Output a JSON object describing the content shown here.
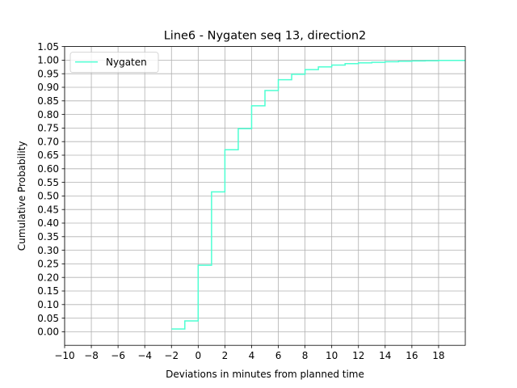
{
  "chart_data": {
    "type": "line",
    "step": "post",
    "title": "Line6 - Nygaten seq 13, direction2",
    "xlabel": "Deviations in minutes from planned time",
    "ylabel": "Cumulative Probability",
    "xlim": [
      -10,
      20
    ],
    "ylim": [
      -0.05,
      1.05
    ],
    "x_ticks": [
      -10,
      -8,
      -6,
      -4,
      -2,
      0,
      2,
      4,
      6,
      8,
      10,
      12,
      14,
      16,
      18
    ],
    "x_tick_labels": [
      "−10",
      "−8",
      "−6",
      "−4",
      "−2",
      "0",
      "2",
      "4",
      "6",
      "8",
      "10",
      "12",
      "14",
      "16",
      "18"
    ],
    "y_ticks": [
      0.0,
      0.05,
      0.1,
      0.15,
      0.2,
      0.25,
      0.3,
      0.35,
      0.4,
      0.45,
      0.5,
      0.55,
      0.6,
      0.65,
      0.7,
      0.75,
      0.8,
      0.85,
      0.9,
      0.95,
      1.0,
      1.05
    ],
    "y_tick_labels": [
      "0.00",
      "0.05",
      "0.10",
      "0.15",
      "0.20",
      "0.25",
      "0.30",
      "0.35",
      "0.40",
      "0.45",
      "0.50",
      "0.55",
      "0.60",
      "0.65",
      "0.70",
      "0.75",
      "0.80",
      "0.85",
      "0.90",
      "0.95",
      "1.00",
      "1.05"
    ],
    "grid": true,
    "legend_position": "top-left",
    "series": [
      {
        "name": "Nygaten",
        "color": "#4dffd2",
        "x": [
          -2,
          -1,
          0,
          1,
          2,
          3,
          4,
          5,
          6,
          7,
          8,
          9,
          10,
          11,
          12,
          13,
          14,
          15,
          16,
          17,
          18,
          20
        ],
        "y": [
          0.01,
          0.04,
          0.245,
          0.515,
          0.67,
          0.748,
          0.832,
          0.888,
          0.928,
          0.948,
          0.965,
          0.975,
          0.982,
          0.987,
          0.99,
          0.992,
          0.994,
          0.996,
          0.997,
          0.998,
          0.999,
          0.999
        ]
      }
    ]
  }
}
